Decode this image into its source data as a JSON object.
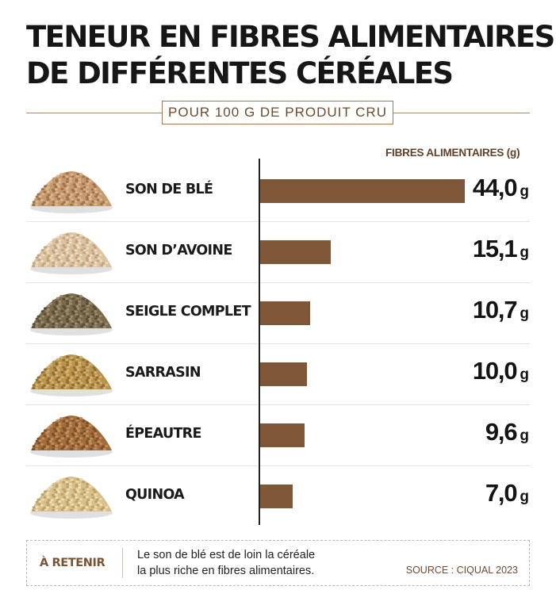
{
  "title_lines": [
    "TENEUR EN FIBRES ALIMENTAIRES",
    "DE DIFFÉRENTES CÉRÉALES"
  ],
  "subtitle": "POUR 100 G DE PRODUIT CRU",
  "colors": {
    "bar": "#7e5638",
    "accent": "#6d4a30",
    "text": "#161616",
    "piles": {
      "son-de-ble": [
        "#c69a6e",
        "#a37249",
        "#d9b78e"
      ],
      "son-davoine": [
        "#dcc3a0",
        "#c2a380",
        "#eedbc2"
      ],
      "seigle-complet": [
        "#7a6a4e",
        "#5c4c34",
        "#9c8c6c"
      ],
      "sarrasin": [
        "#b8944e",
        "#8f6d34",
        "#d4b26e"
      ],
      "epeautre": [
        "#a06e3e",
        "#7e5028",
        "#c48e58"
      ],
      "quinoa": [
        "#d9c08a",
        "#bca06a",
        "#ecdcae"
      ]
    }
  },
  "chart_data": {
    "type": "bar",
    "orientation": "horizontal",
    "title": "TENEUR EN FIBRES ALIMENTAIRES DE DIFFÉRENTES CÉRÉALES",
    "subtitle": "POUR 100 G DE PRODUIT CRU",
    "xlabel": "FIBRES ALIMENTAIRES (g)",
    "xlim": [
      0,
      44
    ],
    "grid": false,
    "legend": "none",
    "categories": [
      "SON DE BLÉ",
      "SON D’AVOINE",
      "SEIGLE COMPLET",
      "SARRASIN",
      "ÉPEAUTRE",
      "QUINOA"
    ],
    "values": [
      44.0,
      15.1,
      10.7,
      10.0,
      9.6,
      7.0
    ],
    "value_labels": [
      "44,0",
      "15,1",
      "10,7",
      "10,0",
      "9,6",
      "7,0"
    ],
    "unit": "g",
    "icons": [
      "son-de-ble",
      "son-davoine",
      "seigle-complet",
      "sarrasin",
      "epeautre",
      "quinoa"
    ]
  },
  "note": {
    "label": "À RETENIR",
    "text_lines": [
      "Le son de blé est de loin la céréale",
      "la plus riche en fibres alimentaires."
    ],
    "source": "SOURCE : CIQUAL 2023"
  }
}
